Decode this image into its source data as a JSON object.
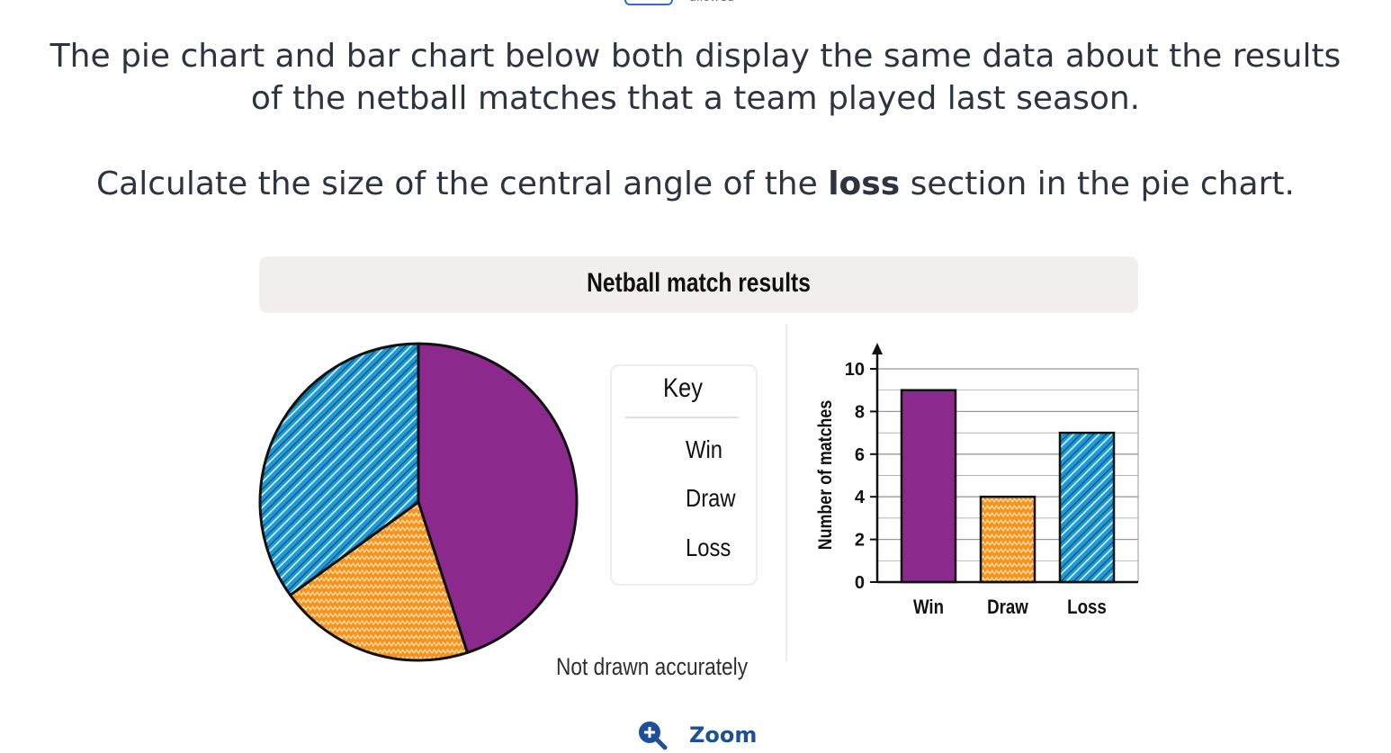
{
  "fragment_text": "allowed",
  "question": {
    "line1": "The pie chart and bar chart below both display the same data about the results",
    "line2": "of the netball matches that a team played last season.",
    "line3_before": "Calculate the size of the central angle of the ",
    "line3_bold": "loss",
    "line3_after": " section in the pie chart."
  },
  "figure": {
    "title": "Netball match results",
    "key_title": "Key",
    "note": "Not drawn accurately"
  },
  "zoom": {
    "label": "Zoom",
    "icon": "zoom-in-icon"
  },
  "colors": {
    "win": "#8b2a8c",
    "draw": "#f6931e",
    "loss": "#1c9bd6",
    "zoom": "#1f4f96"
  },
  "chart_data": [
    {
      "type": "pie",
      "categories": [
        "Win",
        "Draw",
        "Loss"
      ],
      "values": [
        9,
        4,
        7
      ],
      "legend": "right"
    },
    {
      "type": "bar",
      "categories": [
        "Win",
        "Draw",
        "Loss"
      ],
      "values": [
        9,
        4,
        7
      ],
      "xlabel": "",
      "ylabel": "Number of matches",
      "ylim": [
        0,
        10
      ],
      "yticks": [
        0,
        2,
        4,
        6,
        8,
        10
      ],
      "grid": true
    }
  ]
}
